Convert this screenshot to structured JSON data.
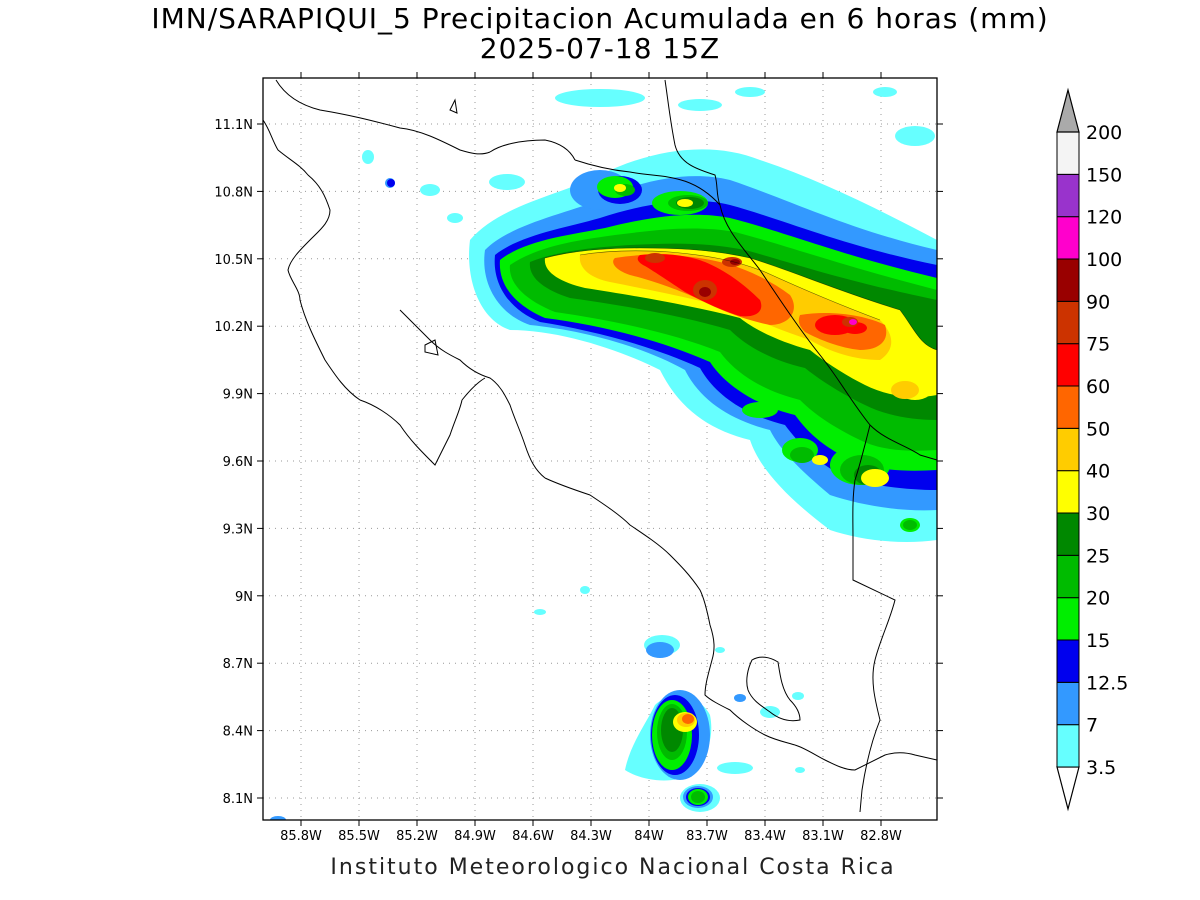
{
  "title": {
    "line1": "IMN/SARAPIQUI_5 Precipitacion Acumulada en 6 horas (mm)",
    "line2": "2025-07-18 15Z"
  },
  "credit": "Instituto Meteorologico Nacional Costa Rica",
  "axes": {
    "lat_labels": [
      "11.1N",
      "10.8N",
      "10.5N",
      "10.2N",
      "9.9N",
      "9.6N",
      "9.3N",
      "9N",
      "8.7N",
      "8.4N",
      "8.1N"
    ],
    "lon_labels": [
      "85.8W",
      "85.5W",
      "85.2W",
      "84.9W",
      "84.6W",
      "84.3W",
      "84W",
      "83.7W",
      "83.4W",
      "83.1W",
      "82.8W"
    ],
    "grid": "dotted"
  },
  "colorbar": {
    "labels": [
      "3.5",
      "7",
      "12.5",
      "15",
      "20",
      "25",
      "30",
      "40",
      "50",
      "60",
      "75",
      "90",
      "100",
      "120",
      "150",
      "200"
    ],
    "colors": [
      "#66ffff",
      "#3399ff",
      "#0000ee",
      "#00ee00",
      "#00bb00",
      "#008800",
      "#ffff00",
      "#ffcc00",
      "#ff6600",
      "#ff0000",
      "#cc3300",
      "#990000",
      "#ff00cc",
      "#9933cc",
      "#f4f4f4"
    ],
    "overflow_color": "#aaaaaa"
  }
}
